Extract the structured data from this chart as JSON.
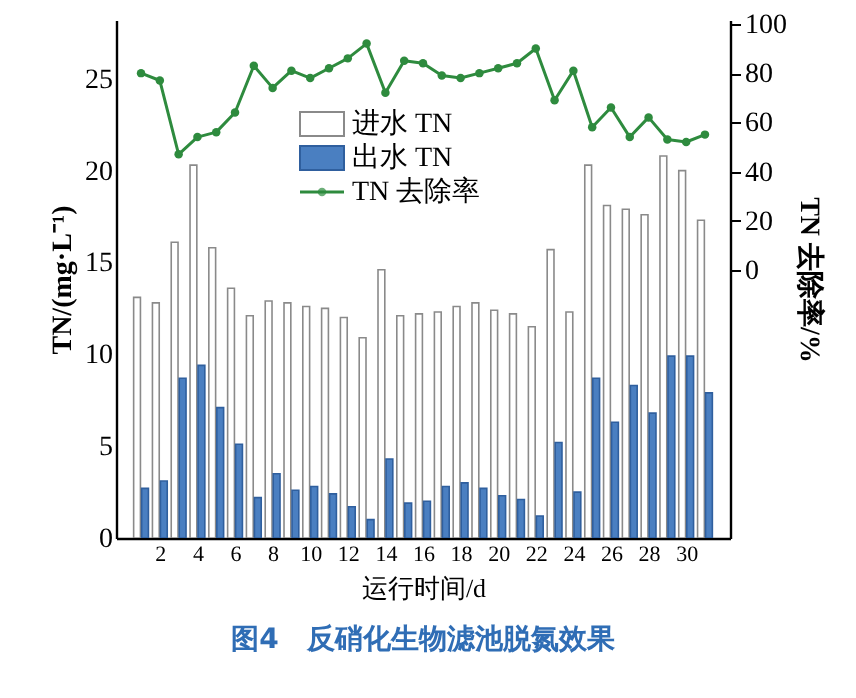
{
  "chart_data": {
    "type": "bar",
    "title": "图4　反硝化生物滤池脱氮效果",
    "xlabel": "运行时间/d",
    "ylabel": "TN/(mg·L⁻¹)",
    "y2label": "TN 去除率/%",
    "x": [
      1,
      2,
      3,
      4,
      5,
      6,
      7,
      8,
      9,
      10,
      11,
      12,
      13,
      14,
      15,
      16,
      17,
      18,
      19,
      20,
      21,
      22,
      23,
      24,
      25,
      26,
      27,
      28,
      29,
      30,
      31
    ],
    "series": [
      {
        "name": "进水 TN",
        "color": "#ffffff",
        "values": [
          13.1,
          12.8,
          16.1,
          20.3,
          15.8,
          13.6,
          12.1,
          12.9,
          12.8,
          12.6,
          12.5,
          12.0,
          10.9,
          14.6,
          12.1,
          12.2,
          12.3,
          12.6,
          12.8,
          12.4,
          12.2,
          11.5,
          15.7,
          12.3,
          20.3,
          18.1,
          17.9,
          17.6,
          20.8,
          20.0,
          17.3
        ]
      },
      {
        "name": "出水 TN",
        "color": "#4a7fc1",
        "values": [
          2.7,
          3.1,
          8.7,
          9.4,
          7.1,
          5.1,
          2.2,
          3.5,
          2.6,
          2.8,
          2.4,
          1.7,
          1.0,
          4.3,
          1.9,
          2.0,
          2.8,
          3.0,
          2.7,
          2.3,
          2.1,
          1.2,
          5.2,
          2.5,
          8.7,
          6.3,
          8.3,
          6.8,
          9.9,
          9.9,
          7.9
        ]
      },
      {
        "name": "TN 去除率",
        "type": "line",
        "axis": "y2",
        "color": "#2e8b3e",
        "marker": "circle",
        "values": [
          80,
          77,
          47,
          54,
          56,
          64,
          83,
          74,
          81,
          78,
          82,
          86,
          92,
          72,
          85,
          84,
          79,
          78,
          80,
          82,
          84,
          90,
          69,
          81,
          58,
          66,
          54,
          62,
          53,
          52,
          55
        ]
      }
    ],
    "xlim": [
      0.2,
      31.8
    ],
    "xticks": [
      2,
      4,
      6,
      8,
      10,
      12,
      14,
      16,
      18,
      20,
      22,
      24,
      26,
      28,
      30
    ],
    "ylim": [
      0,
      28.2
    ],
    "yticks": [
      0,
      5,
      10,
      15,
      20,
      25
    ],
    "y2lim": [
      -109,
      101.6
    ],
    "y2ticks": [
      0,
      20,
      40,
      60,
      80,
      100
    ],
    "legend": "top",
    "grid": false
  }
}
